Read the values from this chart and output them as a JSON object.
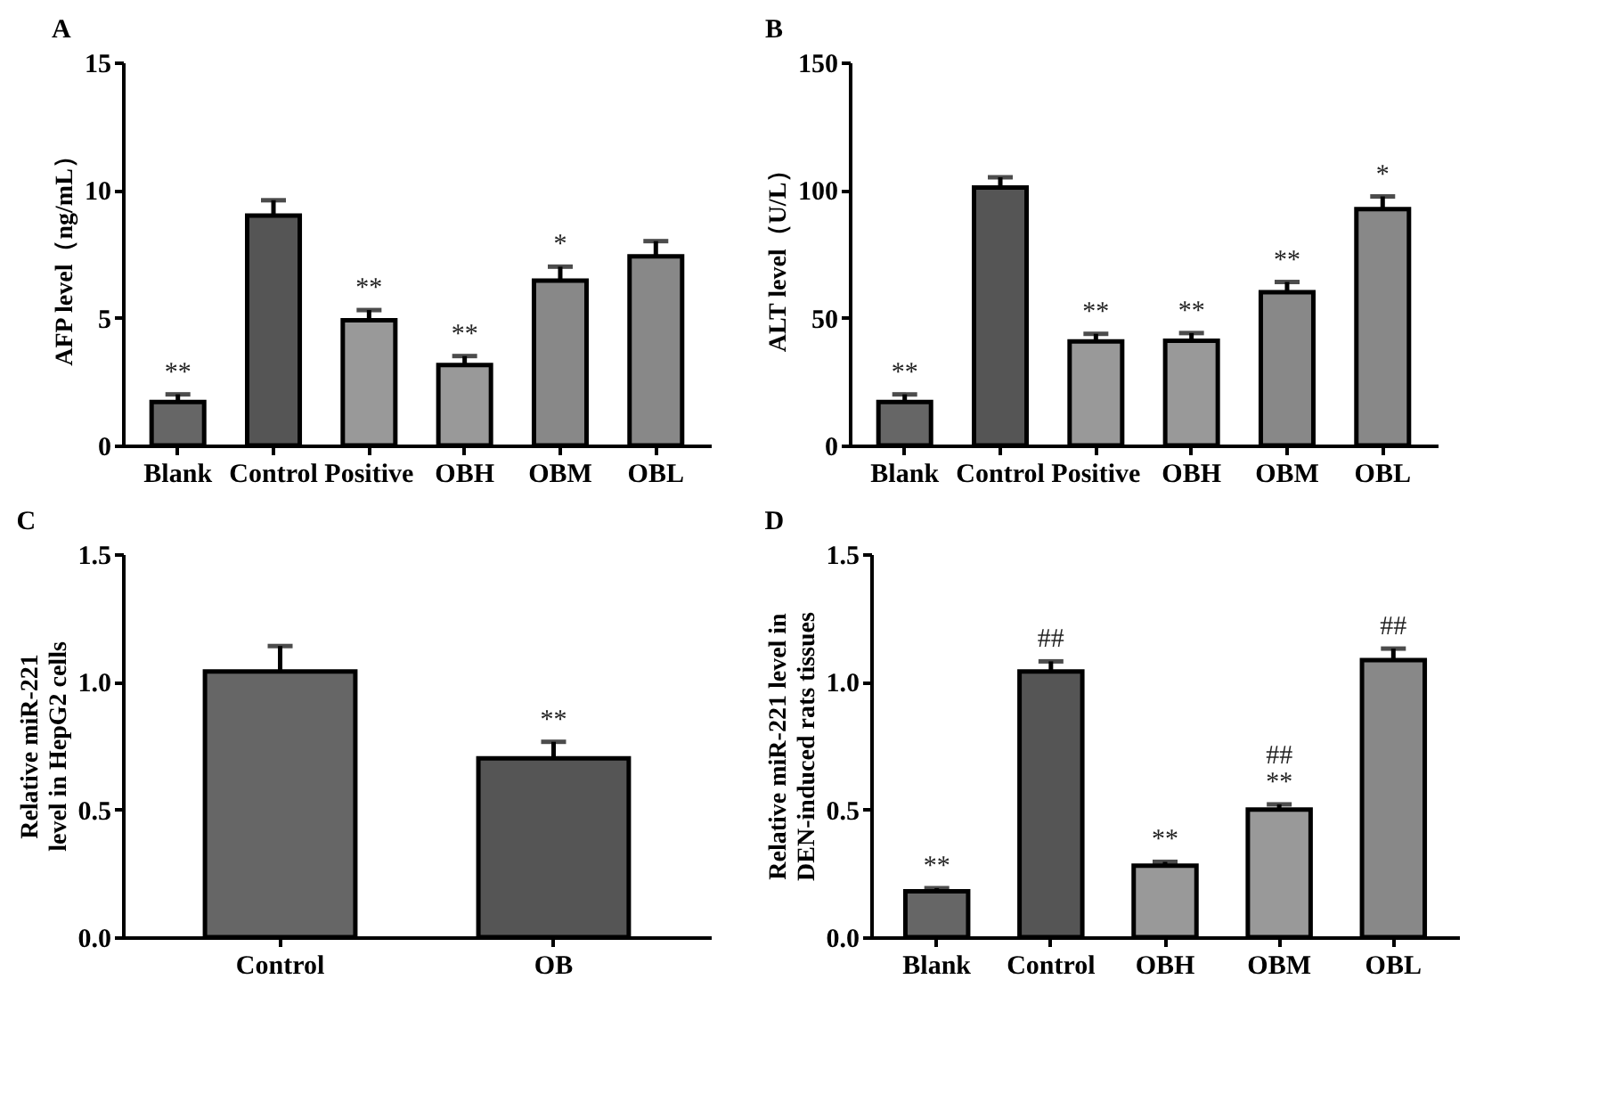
{
  "chart_data": [
    {
      "type": "bar",
      "title": "A",
      "ylabel": "AFP level（ng/mL）",
      "categories": [
        "Blank",
        "Control",
        "Positive",
        "OBH",
        "OBM",
        "OBL"
      ],
      "values": [
        1.7,
        9.0,
        4.9,
        3.15,
        6.45,
        7.4
      ],
      "errors": [
        0.3,
        0.6,
        0.4,
        0.35,
        0.55,
        0.6
      ],
      "colors": [
        "#666666",
        "#555555",
        "#999999",
        "#999999",
        "#888888",
        "#888888"
      ],
      "ylim": [
        0,
        15
      ],
      "yticks": [
        0,
        5,
        10,
        15
      ],
      "annotations": [
        {
          "text": "**",
          "x": "Blank",
          "y": 1.7
        },
        {
          "text": "**",
          "x": "Positive",
          "y": 4.9
        },
        {
          "text": "**",
          "x": "OBH",
          "y": 3.15
        },
        {
          "text": "*",
          "x": "OBM",
          "y": 6.45
        }
      ]
    },
    {
      "type": "bar",
      "title": "B",
      "ylabel": "ALT level（U/L）",
      "categories": [
        "Blank",
        "Control",
        "Positive",
        "OBH",
        "OBM",
        "OBL"
      ],
      "values": [
        17,
        101,
        40.7,
        41,
        60,
        92.5
      ],
      "errors": [
        3,
        4,
        3,
        3,
        4,
        5
      ],
      "colors": [
        "#666666",
        "#555555",
        "#999999",
        "#999999",
        "#888888",
        "#888888"
      ],
      "ylim": [
        0,
        150
      ],
      "yticks": [
        0,
        50,
        100,
        150
      ],
      "annotations": [
        {
          "text": "**",
          "x": "Blank",
          "y": 17
        },
        {
          "text": "**",
          "x": "Positive",
          "y": 40.7
        },
        {
          "text": "**",
          "x": "OBH",
          "y": 41
        },
        {
          "text": "**",
          "x": "OBM",
          "y": 60
        },
        {
          "text": "*",
          "x": "OBL",
          "y": 92.5
        }
      ]
    },
    {
      "type": "bar",
      "title": "C",
      "ylabel": "Relative miR-221 level in HepG2 cells",
      "categories": [
        "Control",
        "OB"
      ],
      "values": [
        1.04,
        0.7
      ],
      "errors": [
        0.1,
        0.065
      ],
      "colors": [
        "#666666",
        "#555555"
      ],
      "ylim": [
        0,
        1.5
      ],
      "yticks": [
        {
          "value": 0,
          "label": "0.0"
        },
        {
          "value": 0.5,
          "label": "0.5"
        },
        {
          "value": 1,
          "label": "1.0"
        },
        {
          "value": 1.5,
          "label": "1.5"
        }
      ],
      "annotations": [
        {
          "text": "**",
          "x": "OB",
          "y": 0.7
        }
      ]
    },
    {
      "type": "bar",
      "title": "D",
      "ylabel": "Relative miR-221 level in DEN-induced rats tissues",
      "categories": [
        "Blank",
        "Control",
        "OBH",
        "OBM",
        "OBL"
      ],
      "values": [
        0.18,
        1.04,
        0.28,
        0.5,
        1.085
      ],
      "errors": [
        0.012,
        0.04,
        0.015,
        0.02,
        0.045
      ],
      "colors": [
        "#666666",
        "#555555",
        "#999999",
        "#999999",
        "#888888"
      ],
      "ylim": [
        0,
        1.5
      ],
      "yticks": [
        {
          "value": 0,
          "label": "0.0"
        },
        {
          "value": 0.5,
          "label": "0.5"
        },
        {
          "value": 1,
          "label": "1.0"
        },
        {
          "value": 1.5,
          "label": "1.5"
        }
      ],
      "annotations": [
        {
          "text": "**",
          "x": "Blank",
          "y": 0.18
        },
        {
          "text": "##",
          "x": "Control",
          "y": 1.04
        },
        {
          "text": "**",
          "x": "OBH",
          "y": 0.28
        },
        {
          "text": "**",
          "x": "OBM",
          "y": 0.5
        },
        {
          "text": "##",
          "x": "OBM",
          "y": 0.5
        },
        {
          "text": "##",
          "x": "OBL",
          "y": 1.085
        }
      ]
    }
  ]
}
